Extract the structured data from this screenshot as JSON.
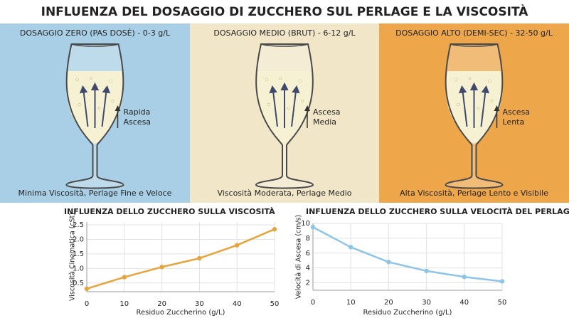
{
  "title": "INFLUENZA DEL DOSAGGIO DI ZUCCHERO SUL PERLAGE E LA VISCOSITÀ",
  "panels": [
    {
      "heading": "DOSAGGIO ZERO (PAS DOSÉ) - 0-3 g/L",
      "arrow_label": [
        "Rapida",
        "Ascesa"
      ],
      "caption": "Minima Viscosità, Perlage Fine e Veloce"
    },
    {
      "heading": "DOSAGGIO MEDIO (BRUT) - 6-12 g/L",
      "arrow_label": [
        "Ascesa",
        "Media"
      ],
      "caption": "Viscosità Moderata, Perlage Medio"
    },
    {
      "heading": "DOSAGGIO ALTO (DEMI-SEC) - 32-50 g/L",
      "arrow_label": [
        "Ascesa",
        "Lenta"
      ],
      "caption": "Alta Viscosità, Perlage Lento e Visibile"
    }
  ],
  "chart_data": [
    {
      "type": "line",
      "title": "INFLUENZA DELLO ZUCCHERO SULLA VISCOSITÀ",
      "x_label": "Residuo Zuccherino (g/L)",
      "y_label": "Viscosità Cinematica (cSt)",
      "x": [
        0,
        10,
        20,
        30,
        40,
        50
      ],
      "values": [
        0.3,
        0.7,
        1.05,
        1.35,
        1.8,
        2.35
      ],
      "color": "#e8a43c",
      "xlim": [
        0,
        50
      ],
      "xticks": [
        0,
        10,
        20,
        30,
        40,
        50
      ],
      "ylim": [
        0.2,
        2.6
      ],
      "yticks": [
        0.5,
        {
          "value": 1,
          "label": "1.0"
        },
        1.5,
        {
          "value": 2,
          "label": "2.0"
        },
        2.5
      ],
      "grid": true
    },
    {
      "type": "line",
      "title": "INFLUENZA DELLO ZUCCHERO SULLA VELOCITÀ DEL PERLAGE",
      "x_label": "Residuo Zuccherino (g/L)",
      "y_label": "Velocità di Ascesa (cm/s)",
      "x": [
        0,
        10,
        20,
        30,
        40,
        50
      ],
      "values": [
        9.5,
        6.8,
        4.8,
        3.6,
        2.8,
        2.2
      ],
      "color": "#8ec5e6",
      "xlim": [
        0,
        50
      ],
      "xticks": [
        0,
        10,
        20,
        30,
        40,
        50
      ],
      "ylim": [
        1,
        10
      ],
      "yticks": [
        2,
        4,
        6,
        8,
        10
      ],
      "grid": true
    }
  ]
}
